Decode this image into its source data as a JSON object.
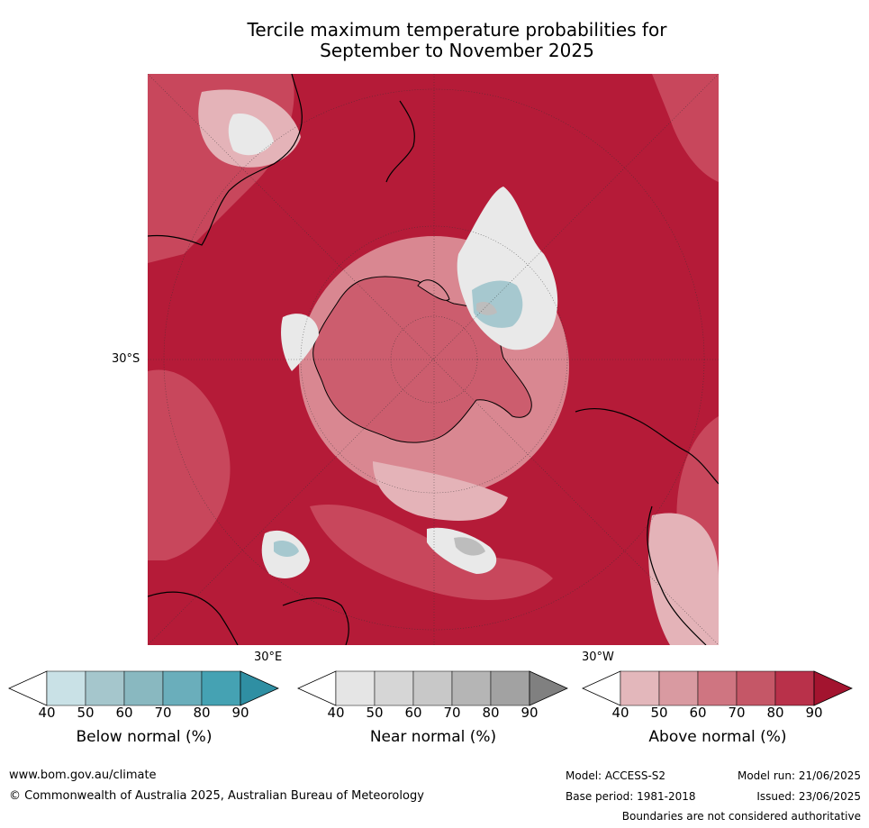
{
  "title": {
    "line1": "Tercile maximum temperature probabilities for",
    "line2": "September to November 2025"
  },
  "map": {
    "labels": {
      "lat_30s": "30°S",
      "lon_30e": "30°E",
      "lon_30w": "30°W"
    },
    "colors": {
      "above_dark": "#b51b38",
      "above_mid": "#c8475c",
      "above_light": "#d98791",
      "above_pale": "#e4b3b8",
      "near": "#e4e4e4",
      "below": "#a6c8cf",
      "land_outline": "#000000"
    }
  },
  "colorbars": [
    {
      "name": "Below normal (%)",
      "ticks": [
        "40",
        "50",
        "60",
        "70",
        "80",
        "90"
      ],
      "colors": [
        "#ffffff",
        "#c9e1e6",
        "#a5c6cc",
        "#89b8c0",
        "#6aaebb",
        "#45a2b3",
        "#2f8fa3"
      ]
    },
    {
      "name": "Near normal (%)",
      "ticks": [
        "40",
        "50",
        "60",
        "70",
        "80",
        "90"
      ],
      "colors": [
        "#ffffff",
        "#e5e5e5",
        "#d6d6d6",
        "#c8c8c8",
        "#b5b5b5",
        "#a2a2a2",
        "#808080"
      ]
    },
    {
      "name": "Above normal (%)",
      "ticks": [
        "40",
        "50",
        "60",
        "70",
        "80",
        "90"
      ],
      "colors": [
        "#ffffff",
        "#e3b7bb",
        "#d99aa1",
        "#cf7581",
        "#c55767",
        "#b9314a",
        "#a3142f"
      ]
    }
  ],
  "footer": {
    "url": "www.bom.gov.au/climate",
    "copyright": "© Commonwealth of Australia 2025, Australian Bureau of Meteorology",
    "model": "Model: ACCESS-S2",
    "base_period": "Base period: 1981-2018",
    "model_run": "Model run: 21/06/2025",
    "issued": "Issued: 23/06/2025",
    "disclaimer": "Boundaries are not considered authoritative"
  }
}
